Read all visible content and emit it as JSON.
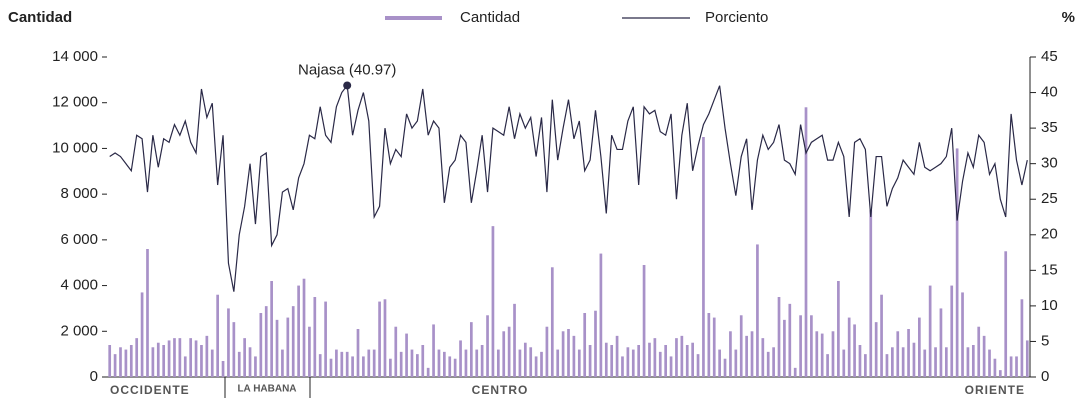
{
  "chart_data": {
    "type": "bar-line",
    "y_title": "Cantidad",
    "y2_title": "%",
    "ylim": [
      0,
      14000
    ],
    "yticks": [
      0,
      {
        "value": 2000,
        "label": "2 000"
      },
      {
        "value": 4000,
        "label": "4 000"
      },
      {
        "value": 6000,
        "label": "6 000"
      },
      {
        "value": 8000,
        "label": "8 000"
      },
      {
        "value": 10000,
        "label": "10 000"
      },
      {
        "value": 12000,
        "label": "12 000"
      },
      {
        "value": 14000,
        "label": "14 000"
      }
    ],
    "y2lim": [
      0,
      45
    ],
    "y2ticks": [
      0,
      5,
      10,
      15,
      20,
      25,
      30,
      35,
      40,
      45
    ],
    "regions": [
      "OCCIDENTE",
      "LA HABANA",
      "CENTRO",
      "ORIENTE"
    ],
    "annotation": "Najasa (40.97)",
    "series": [
      {
        "name": "Cantidad",
        "type": "bar",
        "color": "#a891c8",
        "values": [
          1400,
          1000,
          1300,
          1200,
          1400,
          1700,
          3700,
          5600,
          1300,
          1500,
          1400,
          1600,
          1700,
          1700,
          900,
          1700,
          1600,
          1400,
          1800,
          1200,
          3600,
          700,
          3000,
          2400,
          1100,
          1700,
          1300,
          900,
          2800,
          3100,
          4200,
          2500,
          1200,
          2600,
          3100,
          4000,
          4300,
          2200,
          3500,
          1000,
          3300,
          800,
          1200,
          1100,
          1100,
          900,
          2100,
          900,
          1200,
          1200,
          3300,
          3400,
          800,
          2200,
          1100,
          1900,
          1200,
          1000,
          1400,
          400,
          2300,
          1200,
          1100,
          900,
          800,
          1600,
          1200,
          2400,
          1200,
          1400,
          2700,
          6600,
          1200,
          2000,
          2200,
          3200,
          1200,
          1500,
          1300,
          900,
          1100,
          2200,
          4800,
          1200,
          2000,
          2100,
          1800,
          1200,
          2800,
          1400,
          2900,
          5400,
          1500,
          1400,
          1800,
          900,
          1300,
          1200,
          1400,
          4900,
          1500,
          1700,
          1100,
          1400,
          900,
          1700,
          1800,
          1400,
          1500,
          1000,
          10500,
          2800,
          2600,
          1200,
          800,
          2000,
          1200,
          2700,
          1800,
          2000,
          5800,
          1700,
          1100,
          1300,
          3500,
          2500,
          3200,
          400,
          2700,
          11800,
          2700,
          2000,
          1900,
          1000,
          2000,
          4200,
          1200,
          2600,
          2300,
          1400,
          1000,
          7300,
          2400,
          3600,
          1000,
          1300,
          2000,
          1300,
          2100,
          1500,
          2600,
          1200,
          4000,
          1300,
          3000,
          1300,
          4000,
          10000,
          3700,
          1300,
          1400,
          2200,
          1800,
          1200,
          800,
          300,
          5500,
          900,
          900,
          3400,
          1600
        ]
      },
      {
        "name": "Porciento",
        "type": "line",
        "axis": "y2",
        "color": "#2a2947",
        "values": [
          31,
          31.5,
          31,
          30,
          29,
          34,
          33.5,
          26,
          34,
          29.5,
          33.5,
          33,
          35.5,
          34,
          36,
          33,
          31.5,
          40.5,
          36.5,
          38.5,
          27,
          34,
          16,
          12,
          20,
          24,
          30,
          21.5,
          31,
          31.5,
          18.5,
          20,
          26,
          26.5,
          23.5,
          28,
          30,
          34,
          33.5,
          38,
          34,
          33,
          38,
          40,
          41,
          34,
          37.5,
          40,
          36,
          22.5,
          24,
          35,
          30,
          32,
          31,
          37,
          35,
          36,
          40.5,
          34,
          36,
          35,
          24.5,
          29.5,
          30.5,
          34,
          33,
          24.5,
          29,
          34,
          26,
          35,
          34.5,
          34,
          38,
          33.5,
          37,
          35,
          36.5,
          31,
          36.5,
          26,
          39,
          30.5,
          35,
          39,
          33.5,
          36,
          29,
          30.5,
          37.5,
          31,
          23,
          34,
          32,
          32,
          36,
          38,
          27,
          38,
          37,
          37.5,
          34.5,
          34,
          37,
          25,
          34,
          38.5,
          29,
          32.5,
          35.5,
          37,
          39,
          40.97,
          35,
          30,
          25.5,
          31,
          33.5,
          23.5,
          30.5,
          34,
          32,
          33,
          35.5,
          30.5,
          30,
          28.5,
          35.5,
          31.5,
          33,
          33.5,
          34,
          30.5,
          30.5,
          33,
          31,
          22.5,
          33,
          33.5,
          32,
          22.5,
          31,
          31,
          24,
          26.5,
          28,
          30.5,
          29.5,
          28.5,
          33,
          29.5,
          29,
          29.5,
          30,
          31,
          35,
          22,
          27.5,
          31.5,
          29.5,
          34,
          33,
          28.5,
          30,
          25,
          22.5,
          37,
          30.5,
          27,
          30.5
        ]
      }
    ]
  }
}
